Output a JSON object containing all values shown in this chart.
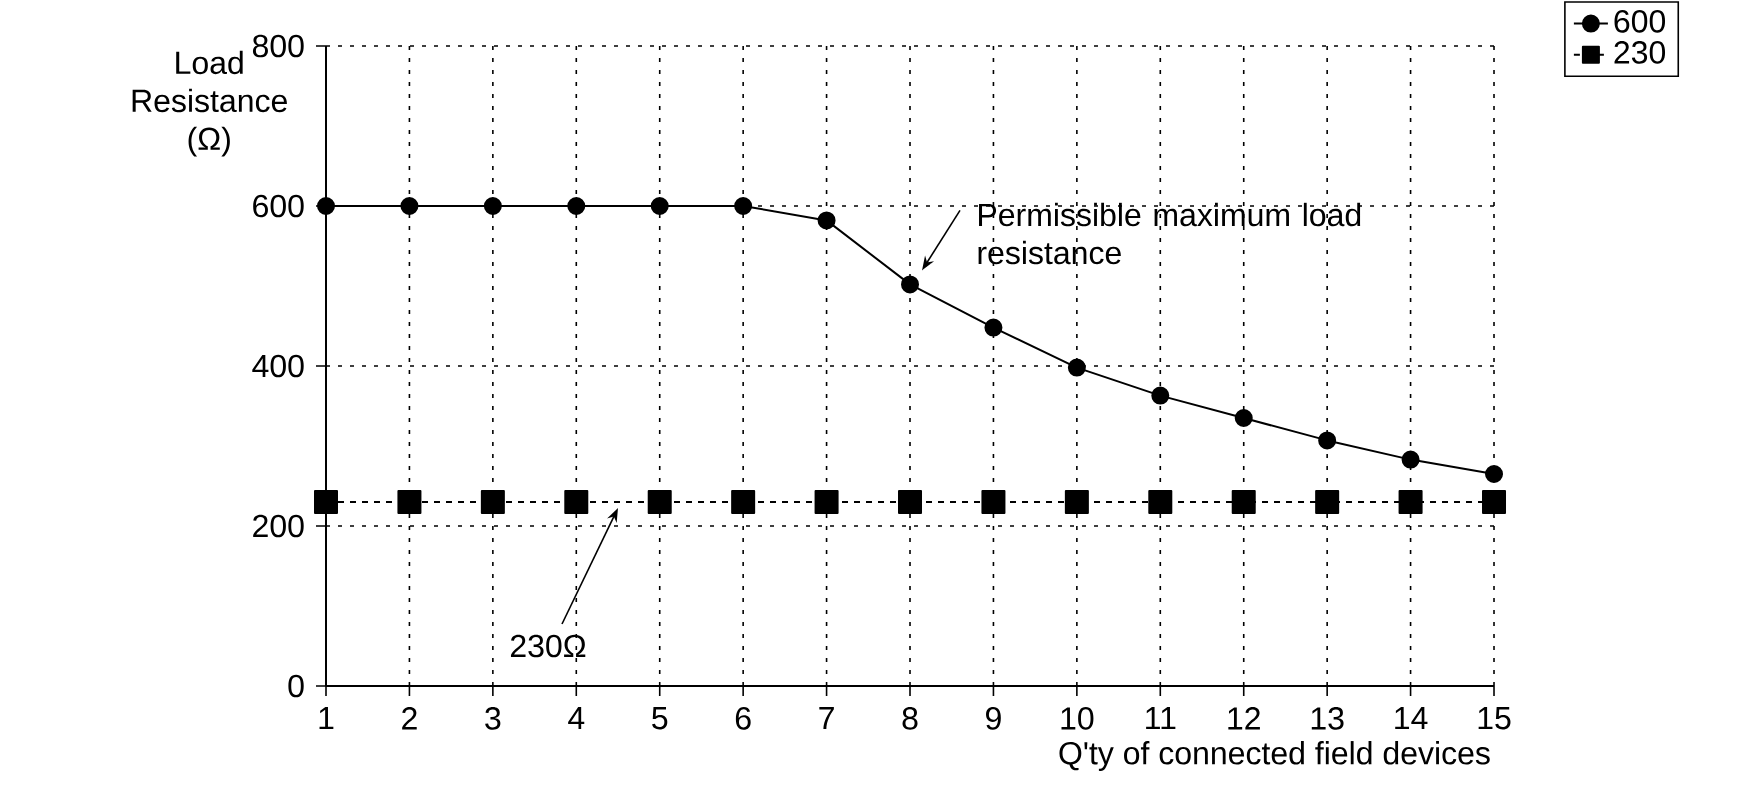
{
  "chart_data": {
    "type": "line",
    "x": [
      1,
      2,
      3,
      4,
      5,
      6,
      7,
      8,
      9,
      10,
      11,
      12,
      13,
      14,
      15
    ],
    "xlabel": "Q'ty of connected field devices",
    "ylabel": "Load Resistance (Ω)",
    "xlim": [
      1,
      15
    ],
    "xticks": [
      1,
      2,
      3,
      4,
      5,
      6,
      7,
      8,
      9,
      10,
      11,
      12,
      13,
      14,
      15
    ],
    "ylim": [
      0,
      800
    ],
    "yticks": [
      0,
      200,
      400,
      600,
      800
    ],
    "grid": true,
    "legend": "top right",
    "series": [
      {
        "name": "600",
        "color": "#000000",
        "marker": "circle",
        "line_style": "solid",
        "values": [
          600,
          600,
          600,
          600,
          600,
          600,
          582,
          502,
          448,
          398,
          363,
          335,
          307,
          283,
          265
        ]
      },
      {
        "name": "230",
        "color": "#000000",
        "marker": "square",
        "line_style": "dashed",
        "values": [
          230,
          230,
          230,
          230,
          230,
          230,
          230,
          230,
          230,
          230,
          230,
          230,
          230,
          230,
          230
        ]
      }
    ],
    "annotations": [
      {
        "text": "Permissible maximum load resistance",
        "x": 8,
        "y": 502
      },
      {
        "text": "230Ω",
        "x": 4.5,
        "y": 230
      }
    ]
  }
}
